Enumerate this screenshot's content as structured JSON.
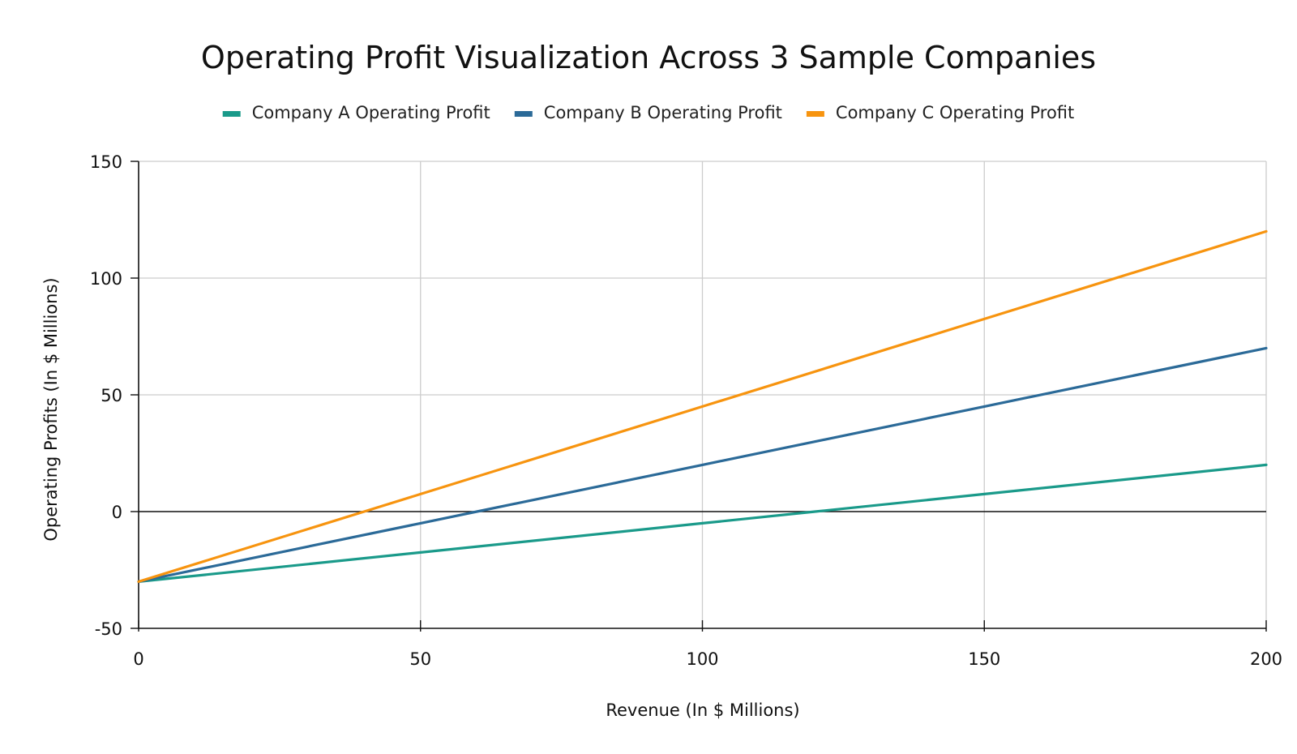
{
  "chart_data": {
    "type": "line",
    "title": "Operating Profit Visualization Across 3 Sample Companies",
    "xlabel": "Revenue (In $ Millions)",
    "ylabel": "Operating Profits (In $ Millions)",
    "xlim": [
      0,
      200
    ],
    "ylim": [
      -50,
      150
    ],
    "x_ticks": [
      0,
      50,
      100,
      150,
      200
    ],
    "y_ticks": [
      -50,
      0,
      50,
      100,
      150
    ],
    "x_tick_labels": [
      "0",
      "50",
      "100",
      "150",
      "200"
    ],
    "y_tick_labels": [
      "-50",
      "0",
      "50",
      "100",
      "150"
    ],
    "grid": true,
    "legend_position": "top-center",
    "series": [
      {
        "name": "Company A Operating Profit",
        "color": "#1a9a8a",
        "points": [
          [
            0,
            -30
          ],
          [
            50,
            -17.5
          ],
          [
            100,
            -5
          ],
          [
            120,
            0
          ],
          [
            150,
            7.5
          ],
          [
            200,
            20
          ]
        ]
      },
      {
        "name": "Company B Operating Profit",
        "color": "#2b6a98",
        "points": [
          [
            0,
            -30
          ],
          [
            50,
            -5
          ],
          [
            60,
            0
          ],
          [
            100,
            20
          ],
          [
            150,
            45
          ],
          [
            200,
            70
          ]
        ]
      },
      {
        "name": "Company C Operating Profit",
        "color": "#f7940f",
        "points": [
          [
            0,
            -30
          ],
          [
            40,
            0
          ],
          [
            50,
            7.5
          ],
          [
            100,
            45
          ],
          [
            150,
            82.5
          ],
          [
            200,
            120
          ]
        ]
      }
    ]
  }
}
